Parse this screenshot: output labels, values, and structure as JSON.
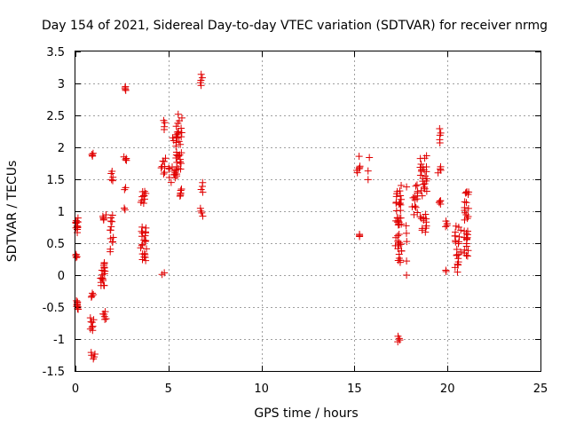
{
  "chart_data": {
    "type": "scatter",
    "title": "Day 154 of 2021, Sidereal Day-to-day VTEC variation (SDTVAR) for receiver nrmg",
    "xlabel": "GPS time / hours",
    "ylabel": "SDTVAR / TECUs",
    "xlim": [
      0,
      25
    ],
    "ylim": [
      -1.5,
      3.5
    ],
    "xticks": [
      0,
      5,
      10,
      15,
      20,
      25
    ],
    "xtick_labels": [
      "0",
      "5",
      "10",
      "15",
      "20",
      "25"
    ],
    "yticks": [
      -1.5,
      -1,
      -0.5,
      0,
      0.5,
      1,
      1.5,
      2,
      2.5,
      3,
      3.5
    ],
    "ytick_labels": [
      "-1.5",
      "-1",
      "-0.5",
      "0",
      "0.5",
      "1",
      "1.5",
      "2",
      "2.5",
      "3",
      "3.5"
    ],
    "grid": true,
    "marker": "+",
    "color": "#e00000",
    "clusters": [
      {
        "x0": 0.0,
        "x1": 0.15,
        "y0": 0.65,
        "y1": 0.9,
        "n": 14
      },
      {
        "x0": 0.0,
        "x1": 0.1,
        "y0": 0.27,
        "y1": 0.33,
        "n": 4
      },
      {
        "x0": 0.0,
        "x1": 0.15,
        "y0": -0.55,
        "y1": -0.38,
        "n": 10
      },
      {
        "x0": 0.85,
        "x1": 1.0,
        "y0": 1.85,
        "y1": 1.92,
        "n": 4
      },
      {
        "x0": 0.8,
        "x1": 1.0,
        "y0": -0.35,
        "y1": -0.28,
        "n": 4
      },
      {
        "x0": 0.8,
        "x1": 1.0,
        "y0": -0.9,
        "y1": -0.65,
        "n": 8
      },
      {
        "x0": 0.8,
        "x1": 1.05,
        "y0": -1.32,
        "y1": -1.2,
        "n": 5
      },
      {
        "x0": 1.35,
        "x1": 1.65,
        "y0": -0.25,
        "y1": 0.25,
        "n": 20
      },
      {
        "x0": 1.45,
        "x1": 1.65,
        "y0": 0.85,
        "y1": 0.95,
        "n": 5
      },
      {
        "x0": 1.45,
        "x1": 1.7,
        "y0": -0.72,
        "y1": -0.55,
        "n": 6
      },
      {
        "x0": 1.85,
        "x1": 2.05,
        "y0": 0.35,
        "y1": 1.0,
        "n": 14
      },
      {
        "x0": 1.9,
        "x1": 2.05,
        "y0": 1.45,
        "y1": 1.65,
        "n": 5
      },
      {
        "x0": 2.6,
        "x1": 2.75,
        "y0": 2.88,
        "y1": 2.96,
        "n": 4
      },
      {
        "x0": 2.6,
        "x1": 2.75,
        "y0": 1.78,
        "y1": 1.86,
        "n": 4
      },
      {
        "x0": 2.6,
        "x1": 2.7,
        "y0": 1.33,
        "y1": 1.38,
        "n": 2
      },
      {
        "x0": 2.6,
        "x1": 2.75,
        "y0": 1.02,
        "y1": 1.05,
        "n": 2
      },
      {
        "x0": 3.5,
        "x1": 3.85,
        "y0": 0.1,
        "y1": 0.85,
        "n": 22
      },
      {
        "x0": 3.5,
        "x1": 3.85,
        "y0": 1.1,
        "y1": 1.35,
        "n": 10
      },
      {
        "x0": 4.6,
        "x1": 4.85,
        "y0": 1.55,
        "y1": 1.85,
        "n": 8
      },
      {
        "x0": 4.7,
        "x1": 4.85,
        "y0": 2.25,
        "y1": 2.45,
        "n": 4
      },
      {
        "x0": 4.65,
        "x1": 4.8,
        "y0": 0.01,
        "y1": 0.04,
        "n": 2
      },
      {
        "x0": 5.0,
        "x1": 5.45,
        "y0": 1.45,
        "y1": 1.75,
        "n": 14
      },
      {
        "x0": 5.1,
        "x1": 5.3,
        "y0": 2.1,
        "y1": 2.15,
        "n": 2
      },
      {
        "x0": 5.4,
        "x1": 5.75,
        "y0": 1.6,
        "y1": 2.55,
        "n": 32
      },
      {
        "x0": 5.55,
        "x1": 5.75,
        "y0": 1.22,
        "y1": 1.35,
        "n": 6
      },
      {
        "x0": 6.7,
        "x1": 6.85,
        "y0": 2.95,
        "y1": 3.15,
        "n": 5
      },
      {
        "x0": 6.7,
        "x1": 6.85,
        "y0": 1.28,
        "y1": 1.45,
        "n": 4
      },
      {
        "x0": 6.7,
        "x1": 6.85,
        "y0": 0.92,
        "y1": 1.05,
        "n": 4
      },
      {
        "x0": 15.1,
        "x1": 15.3,
        "y0": 1.6,
        "y1": 1.72,
        "n": 6
      },
      {
        "x0": 15.2,
        "x1": 15.3,
        "y0": 1.84,
        "y1": 1.88,
        "n": 1
      },
      {
        "x0": 15.75,
        "x1": 15.85,
        "y0": 1.82,
        "y1": 1.86,
        "n": 1
      },
      {
        "x0": 15.7,
        "x1": 15.85,
        "y0": 1.48,
        "y1": 1.65,
        "n": 2
      },
      {
        "x0": 15.2,
        "x1": 15.3,
        "y0": 0.6,
        "y1": 0.64,
        "n": 3
      },
      {
        "x0": 17.2,
        "x1": 17.55,
        "y0": 0.15,
        "y1": 1.45,
        "n": 45
      },
      {
        "x0": 17.3,
        "x1": 17.45,
        "y0": -1.05,
        "y1": -0.95,
        "n": 4
      },
      {
        "x0": 17.75,
        "x1": 17.85,
        "y0": 0.5,
        "y1": 0.82,
        "n": 3
      },
      {
        "x0": 17.75,
        "x1": 17.85,
        "y0": 1.36,
        "y1": 1.4,
        "n": 1
      },
      {
        "x0": 17.75,
        "x1": 17.85,
        "y0": 0.2,
        "y1": 0.24,
        "n": 1
      },
      {
        "x0": 17.75,
        "x1": 17.85,
        "y0": -0.02,
        "y1": 0.02,
        "n": 1
      },
      {
        "x0": 18.1,
        "x1": 18.4,
        "y0": 0.9,
        "y1": 1.45,
        "n": 14
      },
      {
        "x0": 18.5,
        "x1": 18.9,
        "y0": 1.2,
        "y1": 1.9,
        "n": 24
      },
      {
        "x0": 18.5,
        "x1": 18.9,
        "y0": 0.65,
        "y1": 1.0,
        "n": 12
      },
      {
        "x0": 19.45,
        "x1": 19.65,
        "y0": 2.05,
        "y1": 2.32,
        "n": 5
      },
      {
        "x0": 19.45,
        "x1": 19.65,
        "y0": 1.6,
        "y1": 1.7,
        "n": 4
      },
      {
        "x0": 19.45,
        "x1": 19.65,
        "y0": 1.1,
        "y1": 1.18,
        "n": 4
      },
      {
        "x0": 19.9,
        "x1": 20.05,
        "y0": 0.75,
        "y1": 0.85,
        "n": 4
      },
      {
        "x0": 19.9,
        "x1": 20.0,
        "y0": 0.05,
        "y1": 0.08,
        "n": 2
      },
      {
        "x0": 20.4,
        "x1": 20.75,
        "y0": 0.02,
        "y1": 0.85,
        "n": 22
      },
      {
        "x0": 20.9,
        "x1": 21.15,
        "y0": 0.15,
        "y1": 1.5,
        "n": 30
      }
    ]
  }
}
